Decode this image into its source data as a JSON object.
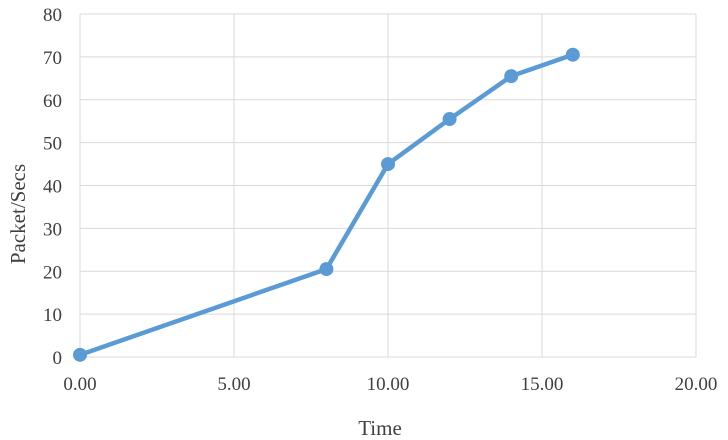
{
  "chart_data": {
    "type": "line",
    "title": "",
    "xlabel": "Time",
    "ylabel": "Packet/Secs",
    "xlim": [
      0,
      20
    ],
    "ylim": [
      0,
      80
    ],
    "grid": true,
    "x_ticks": [
      "0.00",
      "5.00",
      "10.00",
      "15.00",
      "20.00"
    ],
    "y_ticks": [
      "0",
      "10",
      "20",
      "30",
      "40",
      "50",
      "60",
      "70",
      "80"
    ],
    "series": [
      {
        "color": "#5b9bd5",
        "x": [
          0,
          8,
          10,
          12,
          14,
          16
        ],
        "y": [
          0.5,
          20.5,
          45,
          55.5,
          65.5,
          70.5
        ]
      }
    ]
  }
}
